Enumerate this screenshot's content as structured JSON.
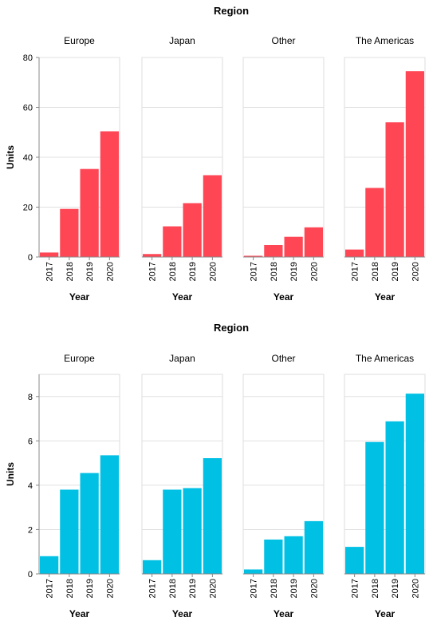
{
  "chart_data": [
    {
      "type": "bar",
      "facet_title": "Region",
      "facets": [
        "Europe",
        "Japan",
        "Other",
        "The Americas"
      ],
      "categories": [
        "2017",
        "2018",
        "2019",
        "2020"
      ],
      "series": [
        {
          "facet": "Europe",
          "values": [
            1.8,
            19.3,
            35.3,
            50.4
          ]
        },
        {
          "facet": "Japan",
          "values": [
            1.2,
            12.3,
            21.6,
            32.8
          ]
        },
        {
          "facet": "Other",
          "values": [
            0.5,
            4.8,
            8.1,
            11.9
          ]
        },
        {
          "facet": "The Americas",
          "values": [
            3.0,
            27.7,
            54.0,
            74.5
          ]
        }
      ],
      "xlabel": "Year",
      "ylabel": "Units",
      "ylim": [
        0,
        80
      ],
      "yticks": [
        0,
        20,
        40,
        60,
        80
      ],
      "color": "#ff4655",
      "grid": true
    },
    {
      "type": "bar",
      "facet_title": "Region",
      "facets": [
        "Europe",
        "Japan",
        "Other",
        "The Americas"
      ],
      "categories": [
        "2017",
        "2018",
        "2019",
        "2020"
      ],
      "series": [
        {
          "facet": "Europe",
          "values": [
            0.8,
            3.8,
            4.55,
            5.35
          ]
        },
        {
          "facet": "Japan",
          "values": [
            0.62,
            3.8,
            3.87,
            5.22
          ]
        },
        {
          "facet": "Other",
          "values": [
            0.2,
            1.55,
            1.7,
            2.38
          ]
        },
        {
          "facet": "The Americas",
          "values": [
            1.22,
            5.95,
            6.88,
            8.13
          ]
        }
      ],
      "xlabel": "Year",
      "ylabel": "Units",
      "ylim": [
        0,
        9
      ],
      "yticks": [
        0,
        2,
        4,
        6,
        8
      ],
      "color": "#00c0e4",
      "grid": true
    }
  ]
}
